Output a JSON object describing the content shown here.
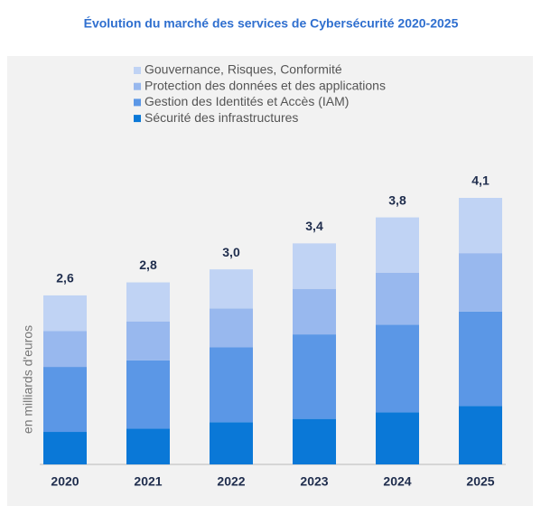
{
  "chart_data": {
    "type": "stacked_bar",
    "title": "Évolution du marché des services de Cybersécurité 2020-2025",
    "y_label": "en milliards d'euros",
    "categories": [
      "2020",
      "2021",
      "2022",
      "2023",
      "2024",
      "2025"
    ],
    "series": [
      {
        "name": "Sécurité des infrastructures",
        "color": "#0a78d7",
        "values": [
          0.5,
          0.55,
          0.65,
          0.7,
          0.8,
          0.9
        ]
      },
      {
        "name": "Gestion des Identités et Accès (IAM)",
        "color": "#5b97e6",
        "values": [
          1.0,
          1.05,
          1.15,
          1.3,
          1.35,
          1.45
        ]
      },
      {
        "name": "Protection des données et des applications",
        "color": "#98b8ee",
        "values": [
          0.55,
          0.6,
          0.6,
          0.7,
          0.8,
          0.9
        ]
      },
      {
        "name": "Gouvernance, Risques, Conformité",
        "color": "#c0d3f4",
        "values": [
          0.55,
          0.6,
          0.6,
          0.7,
          0.85,
          0.85
        ]
      }
    ],
    "totals": [
      2.6,
      2.8,
      3.0,
      3.4,
      3.8,
      4.1
    ],
    "total_labels": [
      "2,6",
      "2,8",
      "3,0",
      "3,4",
      "3,8",
      "4,1"
    ]
  }
}
